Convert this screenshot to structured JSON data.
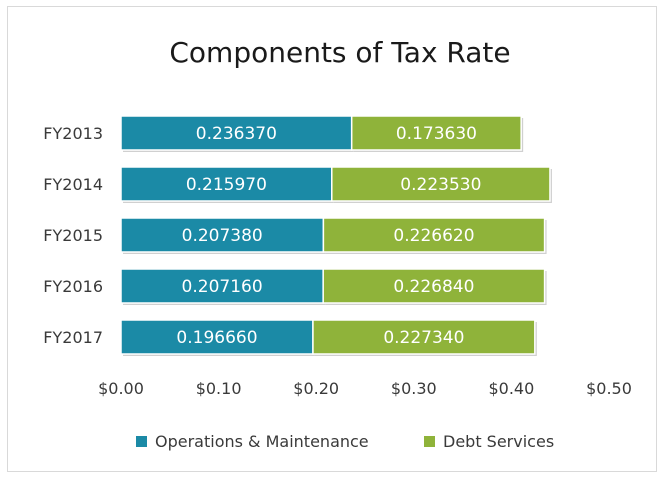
{
  "chart_data": {
    "type": "bar",
    "orientation": "horizontal",
    "stacked": true,
    "title": "Components of Tax Rate",
    "categories": [
      "FY2013",
      "FY2014",
      "FY2015",
      "FY2016",
      "FY2017"
    ],
    "series": [
      {
        "name": "Operations & Maintenance",
        "color": "#1b8aa6",
        "values": [
          0.23637,
          0.21597,
          0.20738,
          0.20716,
          0.19666
        ],
        "labels": [
          "0.236370",
          "0.215970",
          "0.207380",
          "0.207160",
          "0.196660"
        ]
      },
      {
        "name": "Debt Services",
        "color": "#8fb33a",
        "values": [
          0.17363,
          0.22353,
          0.22662,
          0.22684,
          0.22734
        ],
        "labels": [
          "0.173630",
          "0.223530",
          "0.226620",
          "0.226840",
          "0.227340"
        ]
      }
    ],
    "xlim": [
      0,
      0.5
    ],
    "x_ticks": [
      0,
      0.1,
      0.2,
      0.3,
      0.4,
      0.5
    ],
    "x_tick_labels": [
      "$0.00",
      "$0.10",
      "$0.20",
      "$0.30",
      "$0.40",
      "$0.50"
    ],
    "grid": false,
    "legend_position": "bottom"
  }
}
